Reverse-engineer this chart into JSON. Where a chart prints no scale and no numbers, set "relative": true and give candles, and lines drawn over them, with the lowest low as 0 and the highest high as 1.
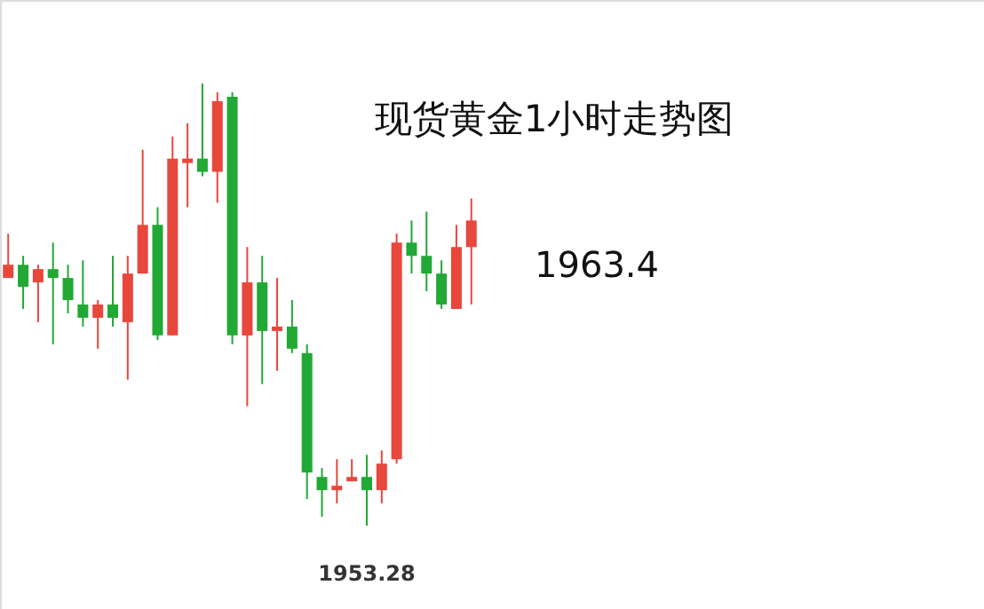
{
  "chart_data": {
    "type": "candlestick",
    "title": "现货黄金1小时走势图",
    "relative": true,
    "categories": [
      null,
      null,
      null,
      null,
      null,
      null,
      null,
      null,
      null,
      null,
      null,
      null,
      null,
      null,
      null,
      null,
      null,
      null,
      null,
      null,
      null,
      null,
      null,
      null,
      null,
      null,
      null,
      null,
      null,
      null,
      null,
      null
    ],
    "ohlc": [
      [
        0.56,
        0.66,
        0.56,
        0.59
      ],
      [
        0.59,
        0.61,
        0.49,
        0.54
      ],
      [
        0.55,
        0.59,
        0.46,
        0.58
      ],
      [
        0.58,
        0.64,
        0.41,
        0.56
      ],
      [
        0.56,
        0.59,
        0.48,
        0.51
      ],
      [
        0.5,
        0.6,
        0.45,
        0.47
      ],
      [
        0.47,
        0.51,
        0.4,
        0.5
      ],
      [
        0.5,
        0.61,
        0.45,
        0.47
      ],
      [
        0.46,
        0.61,
        0.33,
        0.57
      ],
      [
        0.57,
        0.85,
        0.57,
        0.68
      ],
      [
        0.68,
        0.72,
        0.42,
        0.43
      ],
      [
        0.43,
        0.88,
        0.43,
        0.83
      ],
      [
        0.82,
        0.91,
        0.72,
        0.83
      ],
      [
        0.83,
        1,
        0.79,
        0.8
      ],
      [
        0.8,
        0.98,
        0.73,
        0.96
      ],
      [
        0.97,
        0.98,
        0.41,
        0.43
      ],
      [
        0.43,
        0.63,
        0.27,
        0.55
      ],
      [
        0.55,
        0.61,
        0.32,
        0.44
      ],
      [
        0.44,
        0.56,
        0.35,
        0.45
      ],
      [
        0.45,
        0.51,
        0.39,
        0.4
      ],
      [
        0.39,
        0.41,
        0.06,
        0.12
      ],
      [
        0.11,
        0.13,
        0.02,
        0.08
      ],
      [
        0.08,
        0.15,
        0.05,
        0.09
      ],
      [
        0.1,
        0.15,
        0.1,
        0.11
      ],
      [
        0.11,
        0.16,
        0,
        0.08
      ],
      [
        0.08,
        0.17,
        0.05,
        0.14
      ],
      [
        0.15,
        0.66,
        0.14,
        0.64
      ],
      [
        0.64,
        0.69,
        0.57,
        0.61
      ],
      [
        0.61,
        0.71,
        0.53,
        0.57
      ],
      [
        0.57,
        0.6,
        0.49,
        0.5
      ],
      [
        0.49,
        0.68,
        0.49,
        0.63
      ],
      [
        0.63,
        0.74,
        0.5,
        0.69
      ]
    ],
    "colors": [
      "#e8473c",
      "#22a834",
      "#e8473c",
      "#22a834",
      "#22a834",
      "#22a834",
      "#e8473c",
      "#22a834",
      "#e8473c",
      "#e8473c",
      "#22a834",
      "#e8473c",
      "#e8473c",
      "#22a834",
      "#e8473c",
      "#22a834",
      "#e8473c",
      "#22a834",
      "#e8473c",
      "#22a834",
      "#22a834",
      "#22a834",
      "#e8473c",
      "#e8473c",
      "#22a834",
      "#e8473c",
      "#e8473c",
      "#22a834",
      "#22a834",
      "#22a834",
      "#e8473c",
      "#e8473c"
    ],
    "annotations": [
      "1963.4",
      {
        "text": "1953.28",
        "y": 0
      }
    ]
  }
}
